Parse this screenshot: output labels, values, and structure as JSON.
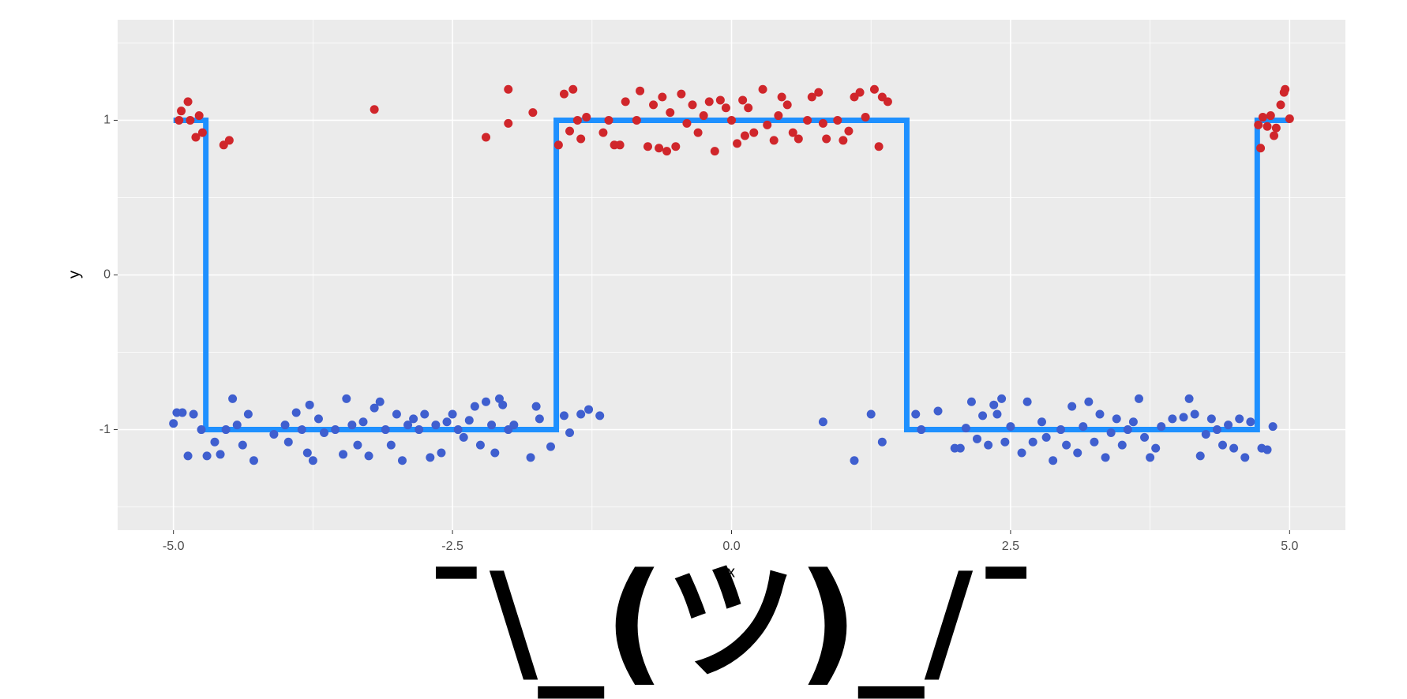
{
  "chart_data": {
    "type": "scatter",
    "x_label": "x",
    "y_label": "y",
    "annotation": "¯\\_(ツ)_/¯",
    "xlim": [
      -5.5,
      5.5
    ],
    "ylim": [
      -1.65,
      1.65
    ],
    "xticks": [
      {
        "value": -5,
        "label": "-5.0"
      },
      {
        "value": -2.5,
        "label": "-2.5"
      },
      {
        "value": 0,
        "label": "0.0"
      },
      {
        "value": 2.5,
        "label": "2.5"
      },
      {
        "value": 5,
        "label": "5.0"
      }
    ],
    "yticks": [
      -1,
      0,
      1
    ],
    "grid": true,
    "series": [
      {
        "type": "points",
        "color": "#d0262b",
        "x": [
          -4.95,
          -4.93,
          -4.87,
          -4.85,
          -4.8,
          -4.77,
          -4.74,
          -4.55,
          -4.5,
          -3.2,
          -2.2,
          -2.0,
          -2.0,
          -1.78,
          -1.55,
          -1.5,
          -1.45,
          -1.42,
          -1.38,
          -1.35,
          -1.3,
          -1.15,
          -1.1,
          -1.05,
          -1.0,
          -0.95,
          -0.85,
          -0.82,
          -0.75,
          -0.7,
          -0.65,
          -0.62,
          -0.58,
          -0.55,
          -0.5,
          -0.45,
          -0.4,
          -0.35,
          -0.3,
          -0.25,
          -0.2,
          -0.15,
          -0.1,
          -0.05,
          0.0,
          0.05,
          0.1,
          0.12,
          0.15,
          0.2,
          0.28,
          0.32,
          0.38,
          0.42,
          0.45,
          0.5,
          0.55,
          0.6,
          0.68,
          0.72,
          0.78,
          0.82,
          0.85,
          0.95,
          1.0,
          1.05,
          1.1,
          1.15,
          1.2,
          1.28,
          1.32,
          1.35,
          1.4,
          4.72,
          4.74,
          4.76,
          4.8,
          4.83,
          4.86,
          4.88,
          4.92,
          4.95,
          4.96,
          5.0
        ],
        "values": [
          1.0,
          1.06,
          1.12,
          1.0,
          0.89,
          1.03,
          0.92,
          0.84,
          0.87,
          1.07,
          0.89,
          1.2,
          0.98,
          1.05,
          0.84,
          1.17,
          0.93,
          1.2,
          1.0,
          0.88,
          1.02,
          0.92,
          1.0,
          0.84,
          0.84,
          1.12,
          1.0,
          1.19,
          0.83,
          1.1,
          0.82,
          1.15,
          0.8,
          1.05,
          0.83,
          1.17,
          0.98,
          1.1,
          0.92,
          1.03,
          1.12,
          0.8,
          1.13,
          1.08,
          1.0,
          0.85,
          1.13,
          0.9,
          1.08,
          0.92,
          1.2,
          0.97,
          0.87,
          1.03,
          1.15,
          1.1,
          0.92,
          0.88,
          1.0,
          1.15,
          1.18,
          0.98,
          0.88,
          1.0,
          0.87,
          0.93,
          1.15,
          1.18,
          1.02,
          1.2,
          0.83,
          1.15,
          1.12,
          0.97,
          0.82,
          1.02,
          0.96,
          1.03,
          0.9,
          0.95,
          1.1,
          1.18,
          1.2,
          1.01
        ]
      },
      {
        "type": "points",
        "color": "#3f5fcf",
        "x": [
          -5.0,
          -4.97,
          -4.92,
          -4.87,
          -4.82,
          -4.75,
          -4.7,
          -4.63,
          -4.58,
          -4.53,
          -4.47,
          -4.43,
          -4.38,
          -4.33,
          -4.28,
          -4.1,
          -4.0,
          -3.97,
          -3.9,
          -3.85,
          -3.8,
          -3.78,
          -3.75,
          -3.7,
          -3.65,
          -3.55,
          -3.48,
          -3.45,
          -3.4,
          -3.35,
          -3.3,
          -3.25,
          -3.2,
          -3.15,
          -3.1,
          -3.05,
          -3.0,
          -2.95,
          -2.9,
          -2.85,
          -2.8,
          -2.75,
          -2.7,
          -2.65,
          -2.6,
          -2.55,
          -2.5,
          -2.45,
          -2.4,
          -2.35,
          -2.3,
          -2.25,
          -2.2,
          -2.15,
          -2.12,
          -2.08,
          -2.05,
          -2.0,
          -1.95,
          -1.8,
          -1.75,
          -1.72,
          -1.62,
          -1.5,
          -1.45,
          -1.35,
          -1.28,
          -1.18,
          0.82,
          1.1,
          1.25,
          1.35,
          1.65,
          1.7,
          1.85,
          2.0,
          2.05,
          2.1,
          2.15,
          2.2,
          2.25,
          2.3,
          2.35,
          2.38,
          2.42,
          2.45,
          2.5,
          2.6,
          2.65,
          2.7,
          2.78,
          2.82,
          2.88,
          2.95,
          3.0,
          3.05,
          3.1,
          3.15,
          3.2,
          3.25,
          3.3,
          3.35,
          3.4,
          3.45,
          3.5,
          3.55,
          3.6,
          3.65,
          3.7,
          3.75,
          3.8,
          3.85,
          3.95,
          4.05,
          4.1,
          4.15,
          4.2,
          4.25,
          4.3,
          4.35,
          4.4,
          4.45,
          4.5,
          4.55,
          4.6,
          4.65,
          4.75,
          4.8,
          4.85
        ],
        "values": [
          -0.96,
          -0.89,
          -0.89,
          -1.17,
          -0.9,
          -1.0,
          -1.17,
          -1.08,
          -1.16,
          -1.0,
          -0.8,
          -0.97,
          -1.1,
          -0.9,
          -1.2,
          -1.03,
          -0.97,
          -1.08,
          -0.89,
          -1.0,
          -1.15,
          -0.84,
          -1.2,
          -0.93,
          -1.02,
          -1.0,
          -1.16,
          -0.8,
          -0.97,
          -1.1,
          -0.95,
          -1.17,
          -0.86,
          -0.82,
          -1.0,
          -1.1,
          -0.9,
          -1.2,
          -0.97,
          -0.93,
          -1.0,
          -0.9,
          -1.18,
          -0.97,
          -1.15,
          -0.95,
          -0.9,
          -1.0,
          -1.05,
          -0.94,
          -0.85,
          -1.1,
          -0.82,
          -0.97,
          -1.15,
          -0.8,
          -0.84,
          -1.0,
          -0.97,
          -1.18,
          -0.85,
          -0.93,
          -1.11,
          -0.91,
          -1.02,
          -0.9,
          -0.87,
          -0.91,
          -0.95,
          -1.2,
          -0.9,
          -1.08,
          -0.9,
          -1.0,
          -0.88,
          -1.12,
          -1.12,
          -0.99,
          -0.82,
          -1.06,
          -0.91,
          -1.1,
          -0.84,
          -0.9,
          -0.8,
          -1.08,
          -0.98,
          -1.15,
          -0.82,
          -1.08,
          -0.95,
          -1.05,
          -1.2,
          -1.0,
          -1.1,
          -0.85,
          -1.15,
          -0.98,
          -0.82,
          -1.08,
          -0.9,
          -1.18,
          -1.02,
          -0.93,
          -1.1,
          -1.0,
          -0.95,
          -0.8,
          -1.05,
          -1.18,
          -1.12,
          -0.98,
          -0.93,
          -0.92,
          -0.8,
          -0.9,
          -1.17,
          -1.03,
          -0.93,
          -1.0,
          -1.1,
          -0.97,
          -1.12,
          -0.93,
          -1.18,
          -0.95,
          -1.12,
          -1.13,
          -0.98
        ]
      },
      {
        "type": "step",
        "color": "#1e90ff",
        "x": [
          -5.0,
          -4.71,
          -4.71,
          -1.57,
          -1.57,
          1.57,
          1.57,
          4.71,
          4.71,
          5.0
        ],
        "values": [
          1,
          1,
          -1,
          -1,
          1,
          1,
          -1,
          -1,
          1,
          1
        ]
      }
    ]
  }
}
